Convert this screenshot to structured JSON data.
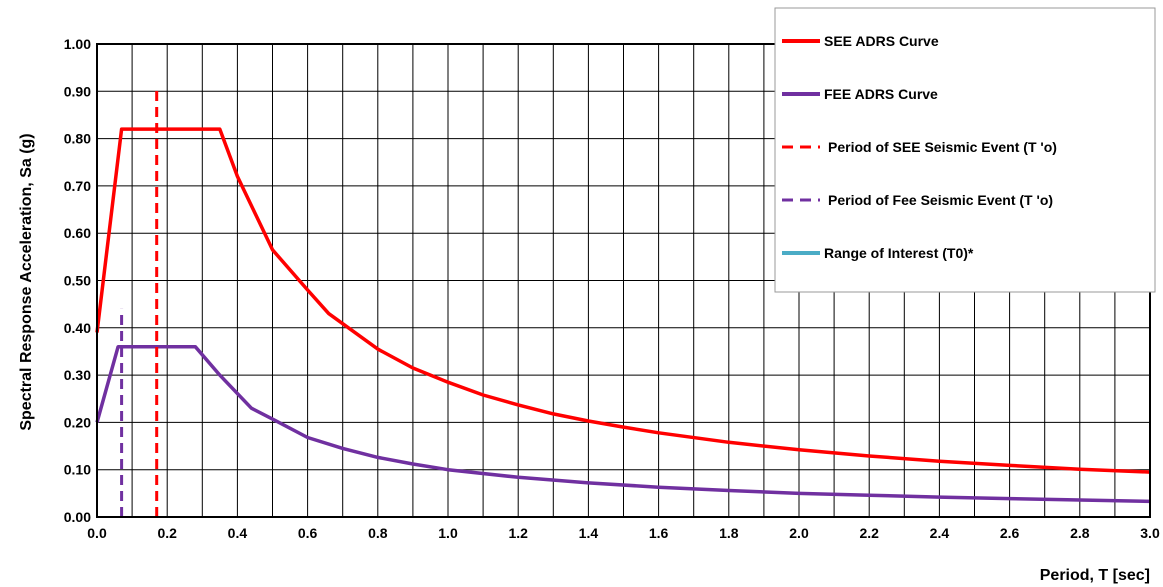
{
  "chart_data": {
    "type": "line",
    "title": "",
    "xlabel": "Period, T [sec]",
    "ylabel": "Spectral Response Acceleration, Sa (g)",
    "xlim": [
      0,
      3
    ],
    "ylim": [
      0,
      1
    ],
    "x_ticks": [
      "0.0",
      "0.2",
      "0.4",
      "0.6",
      "0.8",
      "1.0",
      "1.2",
      "1.4",
      "1.6",
      "1.8",
      "2.0",
      "2.2",
      "2.4",
      "2.6",
      "2.8",
      "3.0"
    ],
    "y_ticks": [
      "0.00",
      "0.10",
      "0.20",
      "0.30",
      "0.40",
      "0.50",
      "0.60",
      "0.70",
      "0.80",
      "0.90",
      "1.00"
    ],
    "grid": true,
    "legend_position": "top-right",
    "series": [
      {
        "name": "SEE ADRS Curve",
        "color": "#ff0000",
        "style": "solid",
        "points": [
          [
            0,
            0.39
          ],
          [
            0.07,
            0.82
          ],
          [
            0.35,
            0.82
          ],
          [
            0.4,
            0.72
          ],
          [
            0.5,
            0.565
          ],
          [
            0.6,
            0.48
          ],
          [
            0.66,
            0.43
          ],
          [
            0.8,
            0.355
          ],
          [
            0.9,
            0.315
          ],
          [
            1.0,
            0.285
          ],
          [
            1.1,
            0.258
          ],
          [
            1.2,
            0.237
          ],
          [
            1.3,
            0.218
          ],
          [
            1.4,
            0.203
          ],
          [
            1.5,
            0.19
          ],
          [
            1.6,
            0.178
          ],
          [
            1.8,
            0.158
          ],
          [
            2.0,
            0.142
          ],
          [
            2.2,
            0.129
          ],
          [
            2.4,
            0.118
          ],
          [
            2.6,
            0.109
          ],
          [
            2.8,
            0.101
          ],
          [
            3.0,
            0.095
          ]
        ]
      },
      {
        "name": "FEE ADRS Curve",
        "color": "#7030a0",
        "style": "solid",
        "points": [
          [
            0,
            0.2
          ],
          [
            0.06,
            0.36
          ],
          [
            0.28,
            0.36
          ],
          [
            0.35,
            0.3
          ],
          [
            0.44,
            0.23
          ],
          [
            0.5,
            0.207
          ],
          [
            0.6,
            0.168
          ],
          [
            0.7,
            0.145
          ],
          [
            0.8,
            0.126
          ],
          [
            0.9,
            0.112
          ],
          [
            1.0,
            0.1
          ],
          [
            1.2,
            0.084
          ],
          [
            1.4,
            0.072
          ],
          [
            1.6,
            0.063
          ],
          [
            1.8,
            0.056
          ],
          [
            2.0,
            0.05
          ],
          [
            2.2,
            0.046
          ],
          [
            2.4,
            0.042
          ],
          [
            2.6,
            0.039
          ],
          [
            2.8,
            0.036
          ],
          [
            3.0,
            0.033
          ]
        ]
      },
      {
        "name": "Period of SEE Seismic Event (T 'o)",
        "color": "#ff0000",
        "style": "dashed",
        "points": [
          [
            0.17,
            0
          ],
          [
            0.17,
            0.91
          ]
        ]
      },
      {
        "name": "Period of Fee Seismic Event (T 'o)",
        "color": "#7030a0",
        "style": "dashed",
        "points": [
          [
            0.07,
            0
          ],
          [
            0.07,
            0.44
          ]
        ]
      },
      {
        "name": "Range of Interest (T0)*",
        "color": "#4bacc6",
        "style": "solid",
        "points": []
      }
    ]
  }
}
